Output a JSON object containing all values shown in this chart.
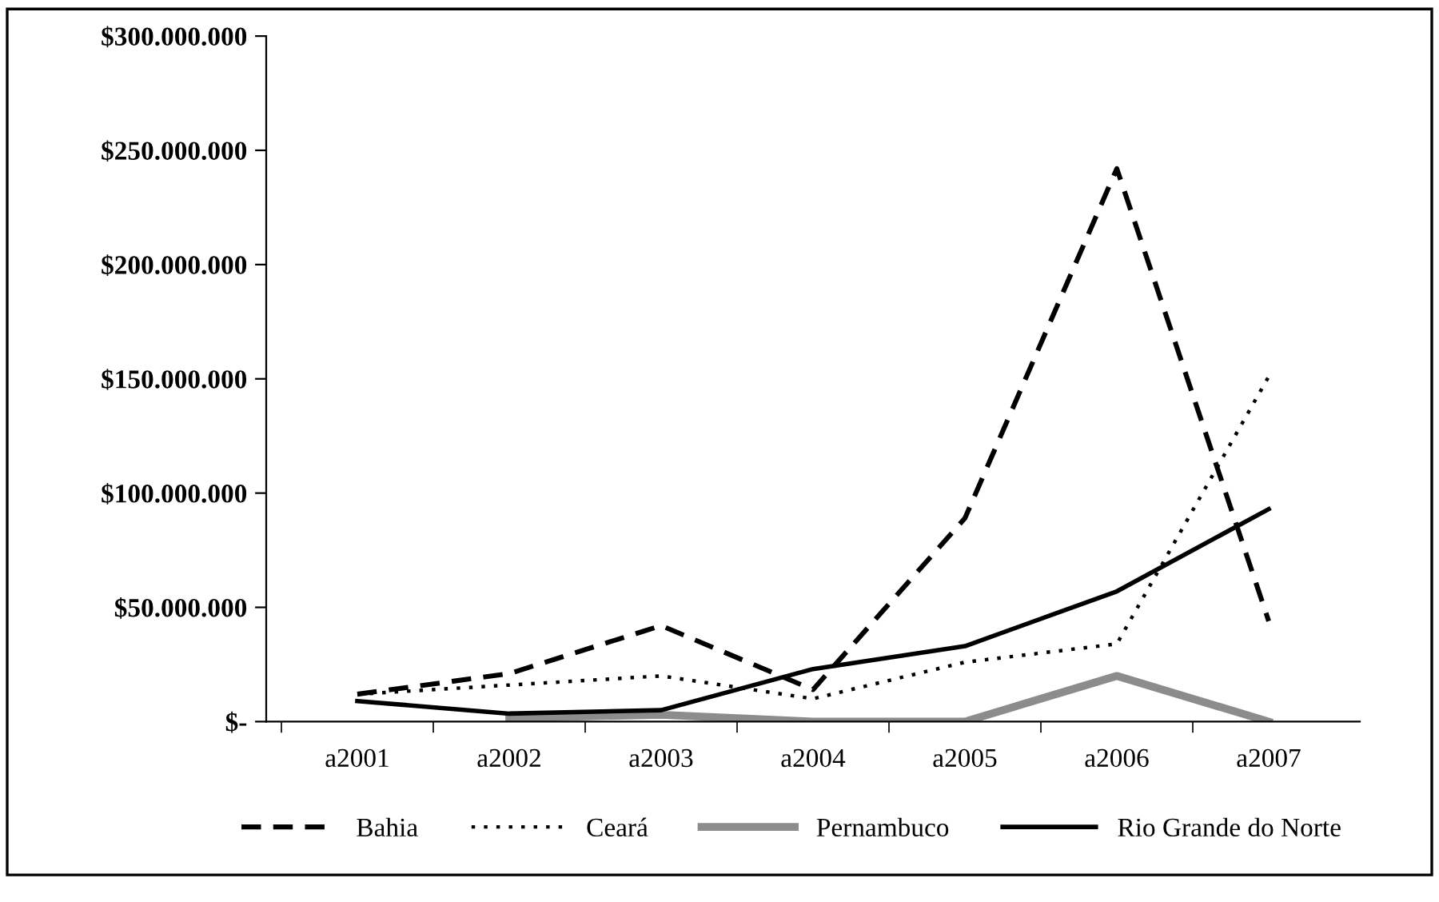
{
  "chart_data": {
    "type": "line",
    "categories": [
      "a2001",
      "a2002",
      "a2003",
      "a2004",
      "a2005",
      "a2006",
      "a2007"
    ],
    "series": [
      {
        "name": "Bahia",
        "color": "#000000",
        "line_style": "dashed",
        "values": [
          12000000,
          21000000,
          42000000,
          14000000,
          89000000,
          242000000,
          44000000
        ]
      },
      {
        "name": "Ceará",
        "color": "#000000",
        "line_style": "dotted",
        "values": [
          12000000,
          16000000,
          20000000,
          10000000,
          26000000,
          34000000,
          151000000
        ]
      },
      {
        "name": "Pernambuco",
        "color": "#8c8c8c",
        "line_style": "solid",
        "values": [
          null,
          1500000,
          3000000,
          0,
          0,
          20000000,
          0
        ]
      },
      {
        "name": "Rio Grande do Norte",
        "color": "#000000",
        "line_style": "solid",
        "values": [
          9000000,
          3500000,
          5000000,
          23000000,
          33000000,
          57000000,
          93000000
        ]
      }
    ],
    "ylim": [
      0,
      300000000
    ],
    "yticks": [
      {
        "value": 0,
        "label": "$-"
      },
      {
        "value": 50000000,
        "label": "$50.000.000"
      },
      {
        "value": 100000000,
        "label": "$100.000.000"
      },
      {
        "value": 150000000,
        "label": "$150.000.000"
      },
      {
        "value": 200000000,
        "label": "$200.000.000"
      },
      {
        "value": 250000000,
        "label": "$250.000.000"
      },
      {
        "value": 300000000,
        "label": "$300.000.000"
      }
    ],
    "grid": false,
    "legend": "bottom"
  }
}
